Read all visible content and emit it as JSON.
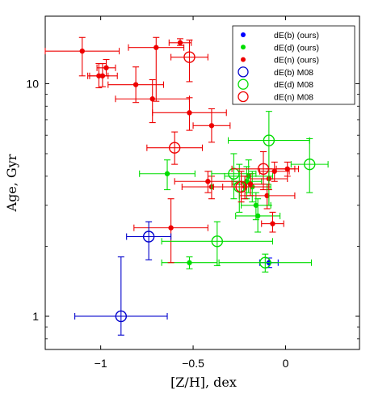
{
  "chart_data": {
    "type": "scatter",
    "xlabel": "[Z/H], dex",
    "ylabel": "Age, Gyr",
    "xlim": [
      -1.3,
      0.4
    ],
    "ylim": [
      0.72,
      19.5
    ],
    "yscale": "log",
    "x_ticks": [
      -1,
      -0.5,
      0
    ],
    "x_tick_labels": [
      "−1",
      "−0.5",
      "0"
    ],
    "y_ticks": [
      1,
      10
    ],
    "y_tick_labels": [
      "1",
      "10"
    ],
    "legend_position": "top-right",
    "grid": false,
    "series": [
      {
        "name": "dE(b) (ours)",
        "marker": "dot",
        "color": "#0000ff",
        "points": [
          {
            "x": -0.09,
            "y": 1.7,
            "xerr": 0.05,
            "ylo": 1.62,
            "yhi": 1.78
          }
        ]
      },
      {
        "name": "dE(d) (ours)",
        "marker": "dot",
        "color": "#00dd00",
        "points": [
          {
            "x": -0.64,
            "y": 4.1,
            "xerr": 0.15,
            "ylo": 3.5,
            "yhi": 4.7
          },
          {
            "x": -0.52,
            "y": 1.7,
            "xerr": 0.15,
            "ylo": 1.6,
            "yhi": 1.8
          },
          {
            "x": -0.21,
            "y": 3.8,
            "xerr": 0.08,
            "ylo": 3.2,
            "yhi": 4.4
          },
          {
            "x": -0.2,
            "y": 4.0,
            "xerr": 0.13,
            "ylo": 3.4,
            "yhi": 4.7
          },
          {
            "x": -0.18,
            "y": 3.6,
            "xerr": 0.1,
            "ylo": 3.1,
            "yhi": 4.2
          },
          {
            "x": -0.16,
            "y": 3.0,
            "xerr": 0.08,
            "ylo": 2.6,
            "yhi": 3.4
          },
          {
            "x": -0.15,
            "y": 2.7,
            "xerr": 0.12,
            "ylo": 2.3,
            "yhi": 3.2
          }
        ]
      },
      {
        "name": "dE(n) (ours)",
        "marker": "dot",
        "color": "#ee0000",
        "points": [
          {
            "x": -1.1,
            "y": 13.8,
            "xerr": 0.2,
            "ylo": 10.8,
            "yhi": 15.8
          },
          {
            "x": -1.01,
            "y": 10.8,
            "xerr": 0.05,
            "ylo": 9.6,
            "yhi": 12.2
          },
          {
            "x": -0.99,
            "y": 10.8,
            "xerr": 0.08,
            "ylo": 9.7,
            "yhi": 12.2
          },
          {
            "x": -0.97,
            "y": 11.7,
            "xerr": 0.05,
            "ylo": 10.8,
            "yhi": 12.7
          },
          {
            "x": -0.81,
            "y": 9.9,
            "xerr": 0.15,
            "ylo": 8.3,
            "yhi": 11.8
          },
          {
            "x": -0.72,
            "y": 8.6,
            "xerr": 0.2,
            "ylo": 6.8,
            "yhi": 10.4
          },
          {
            "x": -0.7,
            "y": 14.3,
            "xerr": 0.15,
            "ylo": 8.4,
            "yhi": 15.8
          },
          {
            "x": -0.57,
            "y": 15.0,
            "xerr": 0.06,
            "ylo": 14.6,
            "yhi": 15.6
          },
          {
            "x": -0.52,
            "y": 7.5,
            "xerr": 0.2,
            "ylo": 6.3,
            "yhi": 8.7
          },
          {
            "x": -0.4,
            "y": 6.6,
            "xerr": 0.1,
            "ylo": 5.6,
            "yhi": 7.8
          },
          {
            "x": -0.42,
            "y": 3.8,
            "xerr": 0.18,
            "ylo": 3.4,
            "yhi": 4.2
          },
          {
            "x": -0.4,
            "y": 3.6,
            "xerr": 0.16,
            "ylo": 3.2,
            "yhi": 4.0
          },
          {
            "x": -0.62,
            "y": 2.4,
            "xerr": 0.2,
            "ylo": 1.7,
            "yhi": 3.2
          },
          {
            "x": -0.22,
            "y": 3.6,
            "xerr": 0.12,
            "ylo": 3.2,
            "yhi": 4.0
          },
          {
            "x": -0.19,
            "y": 3.7,
            "xerr": 0.1,
            "ylo": 3.3,
            "yhi": 4.1
          },
          {
            "x": -0.09,
            "y": 3.9,
            "xerr": 0.1,
            "ylo": 3.5,
            "yhi": 4.3
          },
          {
            "x": -0.1,
            "y": 3.3,
            "xerr": 0.15,
            "ylo": 2.9,
            "yhi": 3.7
          },
          {
            "x": -0.07,
            "y": 2.5,
            "xerr": 0.06,
            "ylo": 2.3,
            "yhi": 2.8
          },
          {
            "x": 0.01,
            "y": 4.3,
            "xerr": 0.06,
            "ylo": 4.0,
            "yhi": 4.6
          },
          {
            "x": -0.06,
            "y": 4.2,
            "xerr": 0.08,
            "ylo": 3.8,
            "yhi": 4.6
          }
        ]
      },
      {
        "name": "dE(b) M08",
        "marker": "circle",
        "color": "#0000cc",
        "points": [
          {
            "x": -0.89,
            "y": 1.0,
            "xerr": 0.25,
            "ylo": 0.83,
            "yhi": 1.8
          },
          {
            "x": -0.74,
            "y": 2.2,
            "xerr": 0.12,
            "ylo": 1.75,
            "yhi": 2.55
          }
        ]
      },
      {
        "name": "dE(d) M08",
        "marker": "circle",
        "color": "#00dd00",
        "points": [
          {
            "x": -0.37,
            "y": 2.1,
            "xerr": 0.3,
            "ylo": 1.65,
            "yhi": 2.55
          },
          {
            "x": -0.28,
            "y": 4.1,
            "xerr": 0.12,
            "ylo": 3.2,
            "yhi": 5.0
          },
          {
            "x": -0.25,
            "y": 3.6,
            "xerr": 0.15,
            "ylo": 2.8,
            "yhi": 4.5
          },
          {
            "x": -0.09,
            "y": 5.7,
            "xerr": 0.22,
            "ylo": 3.0,
            "yhi": 7.6
          },
          {
            "x": -0.11,
            "y": 1.7,
            "xerr": 0.25,
            "ylo": 1.55,
            "yhi": 1.85
          },
          {
            "x": 0.13,
            "y": 4.5,
            "xerr": 0.1,
            "ylo": 3.4,
            "yhi": 5.8
          }
        ]
      },
      {
        "name": "dE(n) M08",
        "marker": "circle",
        "color": "#ee0000",
        "points": [
          {
            "x": -0.52,
            "y": 13.0,
            "xerr": 0.1,
            "ylo": 10.2,
            "yhi": 15.4
          },
          {
            "x": -0.6,
            "y": 5.3,
            "xerr": 0.15,
            "ylo": 4.5,
            "yhi": 6.2
          },
          {
            "x": -0.24,
            "y": 3.6,
            "xerr": 0.15,
            "ylo": 3.1,
            "yhi": 4.2
          },
          {
            "x": -0.12,
            "y": 4.3,
            "xerr": 0.17,
            "ylo": 3.5,
            "yhi": 5.1
          }
        ]
      }
    ]
  }
}
